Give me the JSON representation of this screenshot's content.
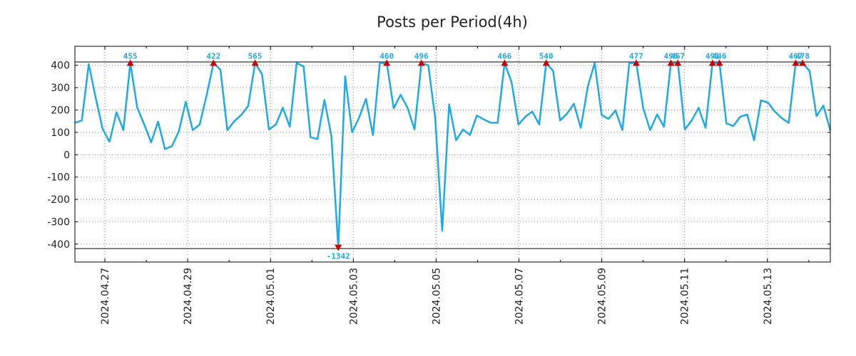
{
  "chart_data": {
    "type": "line",
    "title": "Posts per Period(4h)",
    "xlabel": "",
    "ylabel": "",
    "ylim": [
      -480,
      485
    ],
    "yticks": [
      400,
      300,
      200,
      100,
      0,
      -100,
      -200,
      -300,
      -400
    ],
    "xticks": [
      "2024.04.27",
      "2024.04.29",
      "2024.05.01",
      "2024.05.03",
      "2024.05.05",
      "2024.05.07",
      "2024.05.09",
      "2024.05.11",
      "2024.05.13"
    ],
    "grid": true,
    "clip_lines": [
      415,
      -420
    ],
    "series": [
      {
        "name": "posts",
        "color": "#1eaae6",
        "values": [
          143,
          153,
          405,
          255,
          115,
          58,
          190,
          110,
          410,
          210,
          135,
          55,
          148,
          25,
          38,
          105,
          237,
          110,
          135,
          265,
          410,
          380,
          110,
          150,
          178,
          218,
          410,
          360,
          113,
          135,
          210,
          125,
          410,
          395,
          78,
          70,
          245,
          85,
          -415,
          350,
          100,
          165,
          250,
          88,
          410,
          410,
          208,
          268,
          210,
          113,
          410,
          400,
          160,
          -340,
          225,
          65,
          113,
          88,
          175,
          158,
          143,
          143,
          410,
          325,
          135,
          170,
          193,
          135,
          410,
          375,
          153,
          183,
          228,
          120,
          305,
          410,
          178,
          160,
          198,
          110,
          410,
          410,
          208,
          110,
          180,
          125,
          410,
          410,
          113,
          153,
          210,
          120,
          410,
          410,
          140,
          128,
          170,
          180,
          65,
          243,
          233,
          193,
          163,
          143,
          410,
          410,
          375,
          173,
          220,
          108
        ]
      }
    ],
    "markers": [
      {
        "index": 8,
        "label": "455",
        "direction": "up"
      },
      {
        "index": 20,
        "label": "422",
        "direction": "up"
      },
      {
        "index": 26,
        "label": "565",
        "direction": "up"
      },
      {
        "index": 38,
        "label": "-1342",
        "direction": "down"
      },
      {
        "index": 45,
        "label": "460",
        "direction": "up"
      },
      {
        "index": 50,
        "label": "496",
        "direction": "up"
      },
      {
        "index": 62,
        "label": "466",
        "direction": "up"
      },
      {
        "index": 68,
        "label": "540",
        "direction": "up"
      },
      {
        "index": 81,
        "label": "477",
        "direction": "up"
      },
      {
        "index": 86,
        "label": "496",
        "direction": "up"
      },
      {
        "index": 87,
        "label": "467",
        "direction": "up"
      },
      {
        "index": 92,
        "label": "491",
        "direction": "up"
      },
      {
        "index": 93,
        "label": "446",
        "direction": "up"
      },
      {
        "index": 104,
        "label": "467",
        "direction": "up"
      },
      {
        "index": 105,
        "label": "478",
        "direction": "up"
      }
    ],
    "colors": {
      "line": "#1eaae6",
      "marker": "#cc0000",
      "marker_label": "#1eaae6",
      "grid": "#999999",
      "axis": "#000000"
    }
  }
}
